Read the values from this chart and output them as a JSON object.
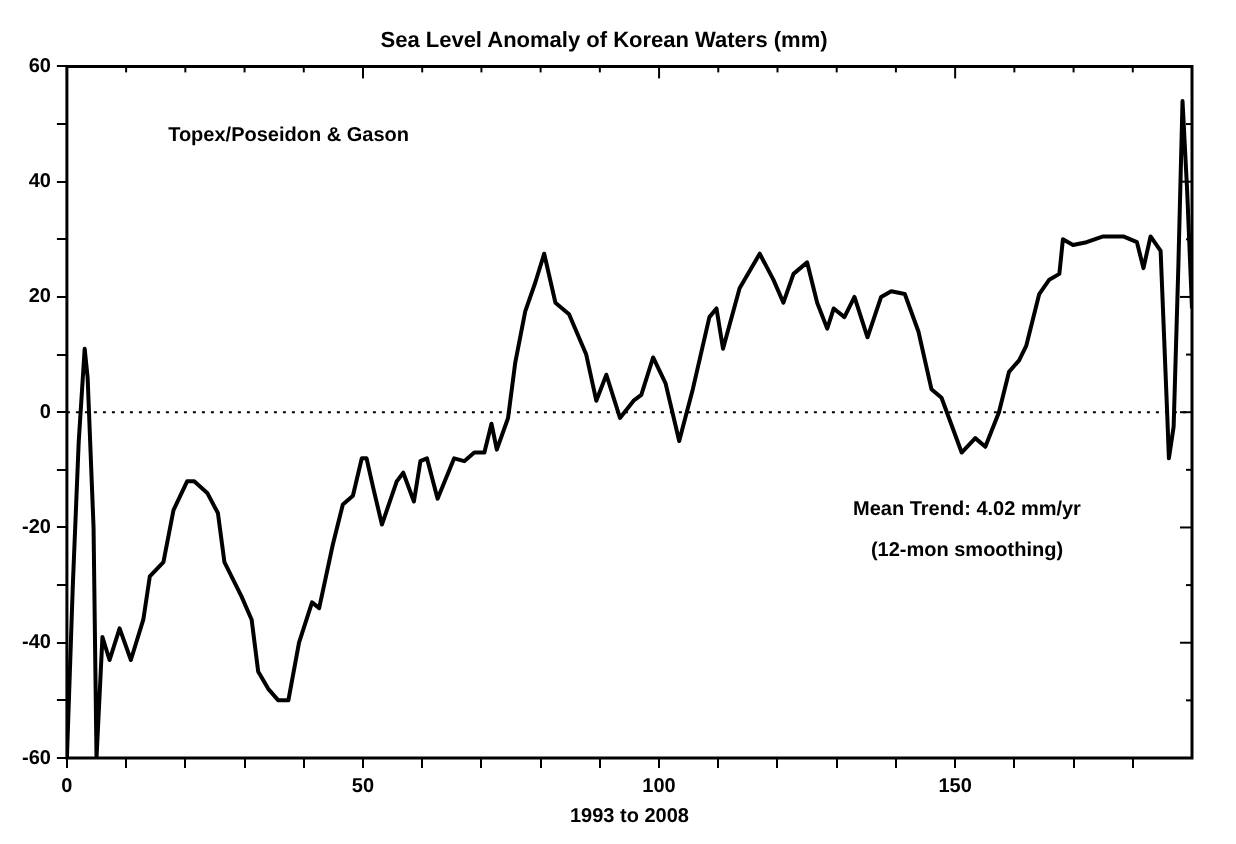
{
  "chart_data": {
    "type": "line",
    "title": "Sea Level Anomaly of Korean Waters (mm)",
    "xlabel": "1993 to 2008",
    "annotations": [
      "Topex/Poseidon & Gason",
      "Mean Trend: 4.02 mm/yr",
      "(12-mon smoothing)"
    ],
    "series": [
      {
        "color": "#000000",
        "x": [
          0,
          1,
          2,
          3,
          3.5,
          4.5,
          5,
          6,
          7.2,
          8.9,
          10.8,
          12.9,
          14,
          16.3,
          18,
          20.3,
          21.5,
          23.7,
          25.5,
          26.6,
          29.5,
          31.2,
          32.3,
          34,
          35.7,
          37.4,
          39.2,
          41.4,
          42.6,
          44.9,
          46.6,
          48.3,
          49.8,
          50.6,
          51.7,
          53.2,
          55.7,
          56.8,
          58.6,
          59.7,
          60.8,
          62.6,
          65.4,
          67.1,
          68.8,
          70.5,
          71.7,
          72.6,
          74.5,
          75.7,
          77.4,
          79.1,
          80.6,
          82.5,
          84.8,
          87.7,
          89.4,
          91.1,
          93.4,
          95.7,
          97,
          99,
          101.1,
          103.4,
          105.7,
          108.5,
          109.7,
          110.8,
          113.6,
          117,
          119.3,
          121,
          122.7,
          125,
          126.7,
          128.4,
          129.5,
          131.3,
          133,
          135.2,
          137.5,
          139.2,
          141.5,
          143.8,
          146,
          147.7,
          151.1,
          153.4,
          155.1,
          157.4,
          159.1,
          160.8,
          162,
          164.2,
          165.9,
          167.6,
          168.2,
          169.9,
          172.2,
          175,
          178.4,
          180.7,
          181.8,
          183,
          184.7,
          185.8,
          186.1,
          186.9,
          187.7,
          188.4,
          189.2,
          190
        ],
        "values": [
          -60,
          -30,
          -5,
          11,
          6,
          -20,
          -60,
          -39,
          -43,
          -37.5,
          -43,
          -36,
          -28.5,
          -26,
          -17,
          -12,
          -12,
          -14,
          -17.5,
          -26,
          -32,
          -36,
          -45,
          -48,
          -50,
          -50,
          -40,
          -33,
          -34,
          -23,
          -16,
          -14.5,
          -8,
          -8,
          -13,
          -19.5,
          -12,
          -10.5,
          -15.5,
          -8.5,
          -8,
          -15,
          -8,
          -8.5,
          -7,
          -7,
          -2,
          -6.5,
          -1,
          8.5,
          17.5,
          22.5,
          27.5,
          19,
          17,
          10,
          2,
          6.5,
          -1,
          2,
          3,
          9.5,
          5,
          -5,
          4,
          16.5,
          18,
          11,
          21.5,
          27.5,
          23,
          19,
          24,
          26,
          19,
          14.5,
          18,
          16.5,
          20,
          13,
          20,
          21,
          20.5,
          14,
          4,
          2.5,
          -7,
          -4.5,
          -6,
          0,
          7,
          9,
          11.5,
          20.5,
          23,
          24,
          30,
          29,
          29.5,
          30.5,
          30.5,
          29.5,
          25,
          30.5,
          28,
          0,
          -8,
          -2.5,
          25.5,
          54,
          38,
          18
        ]
      }
    ],
    "xlim": [
      0,
      190
    ],
    "xticks": [
      0,
      {
        "value": 10,
        "label": null
      },
      {
        "value": 20,
        "label": null
      },
      {
        "value": 30,
        "label": null
      },
      {
        "value": 40,
        "label": null
      },
      50,
      {
        "value": 60,
        "label": null
      },
      {
        "value": 70,
        "label": null
      },
      {
        "value": 80,
        "label": null
      },
      {
        "value": 90,
        "label": null
      },
      100,
      {
        "value": 110,
        "label": null
      },
      {
        "value": 120,
        "label": null
      },
      {
        "value": 130,
        "label": null
      },
      {
        "value": 140,
        "label": null
      },
      150,
      {
        "value": 160,
        "label": null
      },
      {
        "value": 170,
        "label": null
      },
      {
        "value": 180,
        "label": null
      }
    ],
    "ylim": [
      -60,
      60
    ],
    "yticks": [
      -60,
      {
        "value": -50,
        "label": null
      },
      -40,
      {
        "value": -30,
        "label": null
      },
      -20,
      {
        "value": -10,
        "label": null
      },
      0,
      {
        "value": 10,
        "label": null
      },
      20,
      {
        "value": 30,
        "label": null
      },
      40,
      {
        "value": 50,
        "label": null
      },
      60
    ],
    "ref_lines": [
      {
        "axis": "y",
        "value": 0,
        "color": "#000000",
        "line_style": "dotted"
      }
    ],
    "grid": false,
    "legend": false,
    "marker": "none",
    "line_style": "solid"
  }
}
